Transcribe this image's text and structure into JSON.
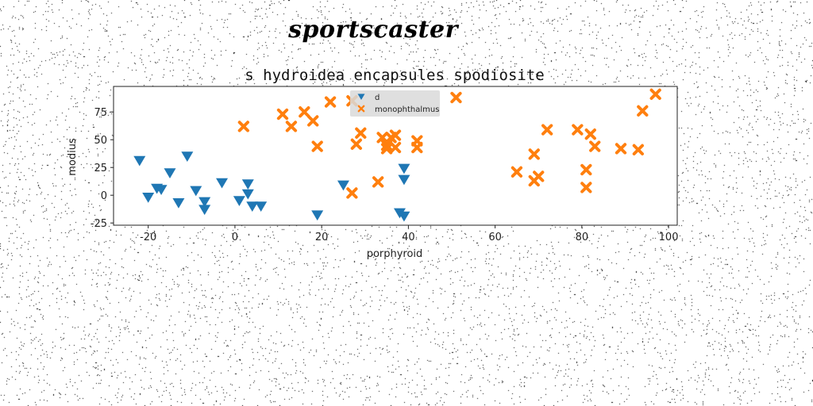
{
  "brand_text": "sportscaster",
  "chart_data": {
    "type": "scatter",
    "title": "s hydroidea encapsules spodiosite",
    "xlabel": "porphyroid",
    "ylabel": "modius",
    "xlim": [
      -28,
      102
    ],
    "ylim": [
      -27,
      98
    ],
    "xticks": [
      -20,
      0,
      20,
      40,
      60,
      80,
      100
    ],
    "yticks": [
      -25,
      0,
      25,
      50,
      75
    ],
    "grid": false,
    "legend_position": "top-center",
    "series": [
      {
        "name": "d",
        "marker": "triangle-down",
        "color": "#1f77b4",
        "points": [
          [
            -22,
            31
          ],
          [
            -20,
            -2
          ],
          [
            -18,
            6
          ],
          [
            -17,
            5
          ],
          [
            -15,
            20
          ],
          [
            -13,
            -7
          ],
          [
            -11,
            35
          ],
          [
            -9,
            4
          ],
          [
            -7,
            -6
          ],
          [
            -7,
            -13
          ],
          [
            -3,
            11
          ],
          [
            1,
            -5
          ],
          [
            3,
            10
          ],
          [
            3,
            1
          ],
          [
            4,
            -10
          ],
          [
            6,
            -10
          ],
          [
            19,
            -18
          ],
          [
            25,
            9
          ],
          [
            38,
            -16
          ],
          [
            39,
            -19
          ],
          [
            39,
            24
          ],
          [
            39,
            14
          ]
        ]
      },
      {
        "name": "monophthalmus",
        "marker": "X",
        "color": "#ff7f0e",
        "points": [
          [
            2,
            62
          ],
          [
            11,
            73
          ],
          [
            13,
            62
          ],
          [
            16,
            75
          ],
          [
            18,
            67
          ],
          [
            19,
            44
          ],
          [
            22,
            84
          ],
          [
            27,
            2
          ],
          [
            27,
            85
          ],
          [
            28,
            46
          ],
          [
            29,
            56
          ],
          [
            33,
            12
          ],
          [
            34,
            52
          ],
          [
            35,
            42
          ],
          [
            35,
            45
          ],
          [
            36,
            52
          ],
          [
            37,
            43
          ],
          [
            37,
            54
          ],
          [
            42,
            43
          ],
          [
            42,
            49
          ],
          [
            51,
            88
          ],
          [
            65,
            21
          ],
          [
            69,
            37
          ],
          [
            69,
            13
          ],
          [
            70,
            17
          ],
          [
            72,
            59
          ],
          [
            79,
            59
          ],
          [
            81,
            7
          ],
          [
            81,
            23
          ],
          [
            82,
            55
          ],
          [
            83,
            44
          ],
          [
            89,
            42
          ],
          [
            93,
            41
          ],
          [
            94,
            76
          ],
          [
            97,
            91
          ]
        ]
      }
    ]
  }
}
